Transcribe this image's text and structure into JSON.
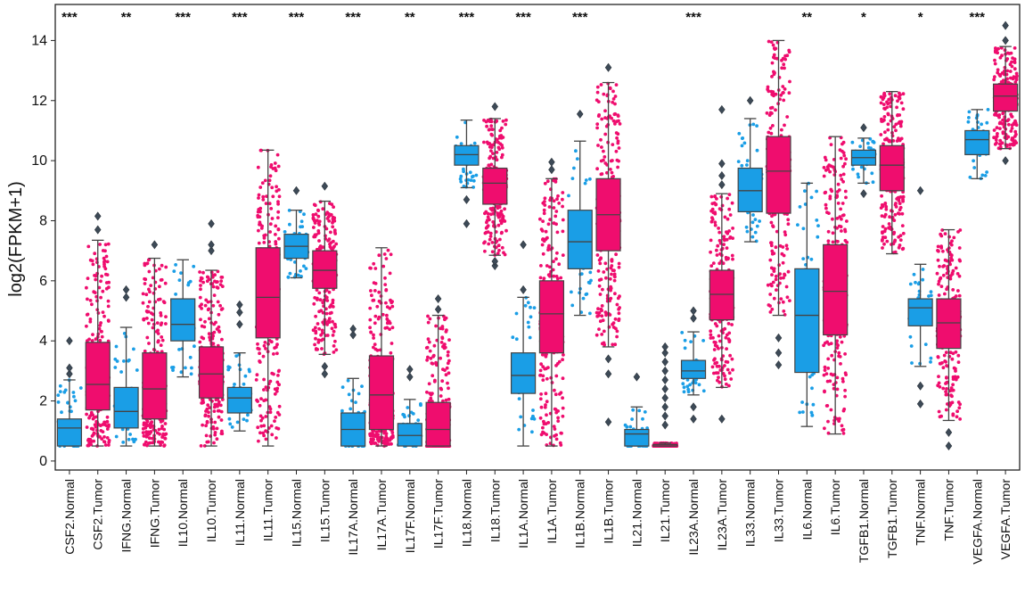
{
  "chart_data": {
    "type": "box",
    "title": "",
    "xlabel": "",
    "ylabel": "log2(FPKM+1)",
    "ylim": [
      -0.3,
      15.2
    ],
    "yticks": [
      0,
      2,
      4,
      6,
      8,
      10,
      12,
      14
    ],
    "grid": false,
    "legend": "none",
    "colors": {
      "Normal": "#1a9ee6",
      "Tumor": "#ef0d6e",
      "outline": "#444444"
    },
    "series": [
      {
        "name": "Normal",
        "categories": [
          "CSF2.Normal",
          "IFNG.Normal",
          "IL10.Normal",
          "IL11.Normal",
          "IL15.Normal",
          "IL17A.Normal",
          "IL17F.Normal",
          "IL18.Normal",
          "IL1A.Normal",
          "IL1B.Normal",
          "IL21.Normal",
          "IL23A.Normal",
          "IL33.Normal",
          "IL6.Normal",
          "TGFB1.Normal",
          "TNF.Normal",
          "VEGFA.Normal"
        ]
      },
      {
        "name": "Tumor",
        "categories": [
          "CSF2.Tumor",
          "IFNG.Tumor",
          "IL10.Tumor",
          "IL11.Tumor",
          "IL15.Tumor",
          "IL17A.Tumor",
          "IL17F.Tumor",
          "IL18.Tumor",
          "IL1A.Tumor",
          "IL1B.Tumor",
          "IL21.Tumor",
          "IL23A.Tumor",
          "IL33.Tumor",
          "IL6.Tumor",
          "TGFB1.Tumor",
          "TNF.Tumor",
          "VEGFA.Tumor"
        ]
      }
    ],
    "boxes": [
      {
        "label": "CSF2.Normal",
        "group": "Normal",
        "q1": 0.5,
        "median": 1.1,
        "q3": 1.4,
        "wlo": 0.5,
        "whi": 2.7,
        "out": [
          2.9,
          3.1,
          4.0
        ]
      },
      {
        "label": "CSF2.Tumor",
        "group": "Tumor",
        "q1": 1.7,
        "median": 2.55,
        "q3": 3.95,
        "wlo": 0.5,
        "whi": 7.35,
        "out": [
          7.7,
          8.15
        ]
      },
      {
        "label": "IFNG.Normal",
        "group": "Normal",
        "q1": 1.1,
        "median": 1.65,
        "q3": 2.45,
        "wlo": 0.5,
        "whi": 4.45,
        "out": [
          5.45,
          5.7
        ]
      },
      {
        "label": "IFNG.Tumor",
        "group": "Tumor",
        "q1": 1.4,
        "median": 2.4,
        "q3": 3.6,
        "wlo": 0.5,
        "whi": 6.75,
        "out": [
          7.2
        ]
      },
      {
        "label": "IL10.Normal",
        "group": "Normal",
        "q1": 4.0,
        "median": 4.55,
        "q3": 5.4,
        "wlo": 2.8,
        "whi": 6.7,
        "out": []
      },
      {
        "label": "IL10.Tumor",
        "group": "Tumor",
        "q1": 2.1,
        "median": 2.9,
        "q3": 3.8,
        "wlo": 0.5,
        "whi": 6.35,
        "out": [
          7.0,
          7.2,
          7.9
        ]
      },
      {
        "label": "IL11.Normal",
        "group": "Normal",
        "q1": 1.6,
        "median": 2.1,
        "q3": 2.45,
        "wlo": 1.0,
        "whi": 3.6,
        "out": [
          4.55,
          4.95,
          5.2
        ]
      },
      {
        "label": "IL11.Tumor",
        "group": "Tumor",
        "q1": 4.1,
        "median": 5.45,
        "q3": 7.1,
        "wlo": 0.5,
        "whi": 10.35,
        "out": []
      },
      {
        "label": "IL15.Normal",
        "group": "Normal",
        "q1": 6.75,
        "median": 7.15,
        "q3": 7.55,
        "wlo": 6.1,
        "whi": 8.35,
        "out": [
          9.0
        ]
      },
      {
        "label": "IL15.Tumor",
        "group": "Tumor",
        "q1": 5.75,
        "median": 6.35,
        "q3": 7.0,
        "wlo": 3.55,
        "whi": 8.65,
        "out": [
          2.9,
          3.15,
          9.15
        ]
      },
      {
        "label": "IL17A.Normal",
        "group": "Normal",
        "q1": 0.5,
        "median": 1.05,
        "q3": 1.6,
        "wlo": 0.5,
        "whi": 2.75,
        "out": [
          4.2,
          4.4
        ]
      },
      {
        "label": "IL17A.Tumor",
        "group": "Tumor",
        "q1": 1.05,
        "median": 2.2,
        "q3": 3.5,
        "wlo": 0.5,
        "whi": 7.1,
        "out": []
      },
      {
        "label": "IL17F.Normal",
        "group": "Normal",
        "q1": 0.5,
        "median": 0.85,
        "q3": 1.25,
        "wlo": 0.5,
        "whi": 2.05,
        "out": [
          2.8,
          3.05
        ]
      },
      {
        "label": "IL17F.Tumor",
        "group": "Tumor",
        "q1": 0.5,
        "median": 1.05,
        "q3": 1.95,
        "wlo": 0.5,
        "whi": 4.85,
        "out": [
          5.05,
          5.4
        ]
      },
      {
        "label": "IL18.Normal",
        "group": "Normal",
        "q1": 9.85,
        "median": 10.2,
        "q3": 10.5,
        "wlo": 9.1,
        "whi": 11.35,
        "out": [
          7.9,
          8.7
        ]
      },
      {
        "label": "IL18.Tumor",
        "group": "Tumor",
        "q1": 8.55,
        "median": 9.25,
        "q3": 9.75,
        "wlo": 6.85,
        "whi": 11.4,
        "out": [
          6.5,
          6.65,
          11.8
        ]
      },
      {
        "label": "IL1A.Normal",
        "group": "Normal",
        "q1": 2.25,
        "median": 2.85,
        "q3": 3.6,
        "wlo": 0.5,
        "whi": 5.45,
        "out": [
          5.7,
          7.2
        ]
      },
      {
        "label": "IL1A.Tumor",
        "group": "Tumor",
        "q1": 3.6,
        "median": 4.9,
        "q3": 6.0,
        "wlo": 0.5,
        "whi": 9.4,
        "out": [
          9.7,
          9.95
        ]
      },
      {
        "label": "IL1B.Normal",
        "group": "Normal",
        "q1": 6.4,
        "median": 7.3,
        "q3": 8.35,
        "wlo": 4.85,
        "whi": 10.65,
        "out": [
          11.55
        ]
      },
      {
        "label": "IL1B.Tumor",
        "group": "Tumor",
        "q1": 7.0,
        "median": 8.2,
        "q3": 9.4,
        "wlo": 3.8,
        "whi": 12.6,
        "out": [
          1.3,
          2.9,
          3.4,
          13.1
        ]
      },
      {
        "label": "IL21.Normal",
        "group": "Normal",
        "q1": 0.5,
        "median": 0.9,
        "q3": 1.05,
        "wlo": 0.5,
        "whi": 1.8,
        "out": [
          2.8
        ]
      },
      {
        "label": "IL21.Tumor",
        "group": "Tumor",
        "q1": 0.5,
        "median": 0.5,
        "q3": 0.55,
        "wlo": 0.5,
        "whi": 0.6,
        "out": [
          1.2,
          1.5,
          1.8,
          2.1,
          2.4,
          2.7,
          3.0,
          3.3,
          3.6,
          3.8
        ]
      },
      {
        "label": "IL23A.Normal",
        "group": "Normal",
        "q1": 2.75,
        "median": 3.0,
        "q3": 3.35,
        "wlo": 2.2,
        "whi": 4.3,
        "out": [
          1.4,
          1.8,
          4.75,
          5.0
        ]
      },
      {
        "label": "IL23A.Tumor",
        "group": "Tumor",
        "q1": 4.7,
        "median": 5.55,
        "q3": 6.35,
        "wlo": 2.45,
        "whi": 8.9,
        "out": [
          1.4,
          9.2,
          9.5,
          9.9,
          11.7
        ]
      },
      {
        "label": "IL33.Normal",
        "group": "Normal",
        "q1": 8.3,
        "median": 9.0,
        "q3": 9.75,
        "wlo": 7.3,
        "whi": 11.4,
        "out": [
          12.0
        ]
      },
      {
        "label": "IL33.Tumor",
        "group": "Tumor",
        "q1": 8.25,
        "median": 9.65,
        "q3": 10.8,
        "wlo": 4.85,
        "whi": 14.0,
        "out": [
          3.2,
          3.6,
          4.1
        ]
      },
      {
        "label": "IL6.Normal",
        "group": "Normal",
        "q1": 2.95,
        "median": 4.85,
        "q3": 6.4,
        "wlo": 1.15,
        "whi": 9.25,
        "out": []
      },
      {
        "label": "IL6.Tumor",
        "group": "Tumor",
        "q1": 4.2,
        "median": 5.65,
        "q3": 7.2,
        "wlo": 0.9,
        "whi": 10.8,
        "out": []
      },
      {
        "label": "TGFB1.Normal",
        "group": "Normal",
        "q1": 9.85,
        "median": 10.1,
        "q3": 10.35,
        "wlo": 9.25,
        "whi": 10.75,
        "out": [
          8.9,
          11.1
        ]
      },
      {
        "label": "TGFB1.Tumor",
        "group": "Tumor",
        "q1": 9.0,
        "median": 9.85,
        "q3": 10.5,
        "wlo": 6.9,
        "whi": 12.3,
        "out": []
      },
      {
        "label": "TNF.Normal",
        "group": "Normal",
        "q1": 4.5,
        "median": 5.1,
        "q3": 5.4,
        "wlo": 3.15,
        "whi": 6.55,
        "out": [
          1.9,
          2.5,
          9.0
        ]
      },
      {
        "label": "TNF.Tumor",
        "group": "Tumor",
        "q1": 3.75,
        "median": 4.6,
        "q3": 5.4,
        "wlo": 1.35,
        "whi": 7.7,
        "out": [
          0.5,
          0.95
        ]
      },
      {
        "label": "VEGFA.Normal",
        "group": "Normal",
        "q1": 10.2,
        "median": 10.7,
        "q3": 11.0,
        "wlo": 9.4,
        "whi": 11.7,
        "out": []
      },
      {
        "label": "VEGFA.Tumor",
        "group": "Tumor",
        "q1": 11.65,
        "median": 12.15,
        "q3": 12.55,
        "wlo": 10.4,
        "whi": 13.8,
        "out": [
          10.0,
          14.0,
          14.5
        ]
      }
    ],
    "significance": [
      {
        "gene": "CSF2",
        "stars": "***"
      },
      {
        "gene": "IFNG",
        "stars": "**"
      },
      {
        "gene": "IL10",
        "stars": "***"
      },
      {
        "gene": "IL11",
        "stars": "***"
      },
      {
        "gene": "IL15",
        "stars": "***"
      },
      {
        "gene": "IL17A",
        "stars": "***"
      },
      {
        "gene": "IL17F",
        "stars": "**"
      },
      {
        "gene": "IL18",
        "stars": "***"
      },
      {
        "gene": "IL1A",
        "stars": "***"
      },
      {
        "gene": "IL1B",
        "stars": "***"
      },
      {
        "gene": "IL21",
        "stars": ""
      },
      {
        "gene": "IL23A",
        "stars": "***"
      },
      {
        "gene": "IL33",
        "stars": ""
      },
      {
        "gene": "IL6",
        "stars": "**"
      },
      {
        "gene": "TGFB1",
        "stars": "*"
      },
      {
        "gene": "TNF",
        "stars": "*"
      },
      {
        "gene": "VEGFA",
        "stars": "***"
      }
    ]
  }
}
